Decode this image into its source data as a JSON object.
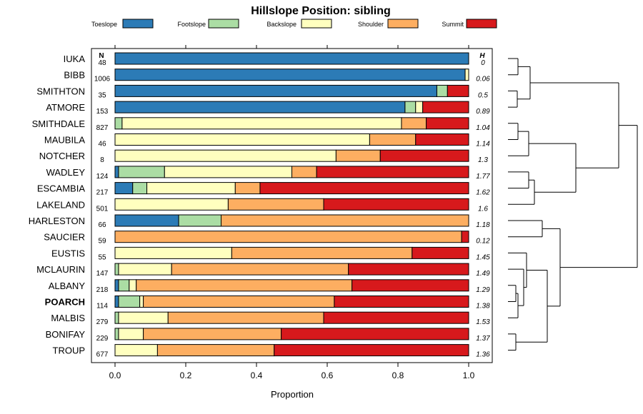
{
  "chart_data": {
    "type": "stacked-bar",
    "title": "Hillslope Position: sibling",
    "xlabel": "Proportion",
    "xlim": [
      0,
      1
    ],
    "xticks": [
      0.0,
      0.2,
      0.4,
      0.6,
      0.8,
      1.0
    ],
    "xtick_labels": [
      "0.0",
      "0.2",
      "0.4",
      "0.6",
      "0.8",
      "1.0"
    ],
    "n_header": "N",
    "h_header": "H",
    "categories": [
      "Toeslope",
      "Footslope",
      "Backslope",
      "Shoulder",
      "Summit"
    ],
    "colors": [
      "#2c7bb6",
      "#abdda4",
      "#ffffbf",
      "#fdae61",
      "#d7191c"
    ],
    "highlight": "POARCH",
    "rows": [
      {
        "name": "IUKA",
        "n": "48",
        "h": "0",
        "values": [
          1.0,
          0.0,
          0.0,
          0.0,
          0.0
        ]
      },
      {
        "name": "BIBB",
        "n": "1006",
        "h": "0.06",
        "values": [
          0.99,
          0.0,
          0.01,
          0.0,
          0.0
        ]
      },
      {
        "name": "SMITHTON",
        "n": "35",
        "h": "0.5",
        "values": [
          0.91,
          0.03,
          0.0,
          0.0,
          0.06
        ]
      },
      {
        "name": "ATMORE",
        "n": "153",
        "h": "0.89",
        "values": [
          0.82,
          0.03,
          0.02,
          0.0,
          0.13
        ]
      },
      {
        "name": "SMITHDALE",
        "n": "827",
        "h": "1.04",
        "values": [
          0.0,
          0.02,
          0.79,
          0.07,
          0.12
        ]
      },
      {
        "name": "MAUBILA",
        "n": "46",
        "h": "1.14",
        "values": [
          0.0,
          0.0,
          0.72,
          0.13,
          0.15
        ]
      },
      {
        "name": "NOTCHER",
        "n": "8",
        "h": "1.3",
        "values": [
          0.0,
          0.0,
          0.625,
          0.125,
          0.25
        ]
      },
      {
        "name": "WADLEY",
        "n": "124",
        "h": "1.77",
        "values": [
          0.01,
          0.13,
          0.36,
          0.07,
          0.43
        ]
      },
      {
        "name": "ESCAMBIA",
        "n": "217",
        "h": "1.62",
        "values": [
          0.05,
          0.04,
          0.25,
          0.07,
          0.59
        ]
      },
      {
        "name": "LAKELAND",
        "n": "501",
        "h": "1.6",
        "values": [
          0.0,
          0.0,
          0.32,
          0.27,
          0.41
        ]
      },
      {
        "name": "HARLESTON",
        "n": "66",
        "h": "1.18",
        "values": [
          0.18,
          0.12,
          0.0,
          0.7,
          0.0
        ]
      },
      {
        "name": "SAUCIER",
        "n": "59",
        "h": "0.12",
        "values": [
          0.0,
          0.0,
          0.0,
          0.98,
          0.02
        ]
      },
      {
        "name": "EUSTIS",
        "n": "55",
        "h": "1.45",
        "values": [
          0.0,
          0.0,
          0.33,
          0.51,
          0.16
        ]
      },
      {
        "name": "MCLAURIN",
        "n": "147",
        "h": "1.49",
        "values": [
          0.0,
          0.01,
          0.15,
          0.5,
          0.34
        ]
      },
      {
        "name": "ALBANY",
        "n": "218",
        "h": "1.29",
        "values": [
          0.01,
          0.03,
          0.02,
          0.61,
          0.33
        ]
      },
      {
        "name": "POARCH",
        "n": "114",
        "h": "1.38",
        "values": [
          0.01,
          0.06,
          0.01,
          0.54,
          0.38
        ]
      },
      {
        "name": "MALBIS",
        "n": "279",
        "h": "1.53",
        "values": [
          0.0,
          0.01,
          0.14,
          0.44,
          0.41
        ]
      },
      {
        "name": "BONIFAY",
        "n": "229",
        "h": "1.37",
        "values": [
          0.0,
          0.01,
          0.07,
          0.39,
          0.53
        ]
      },
      {
        "name": "TROUP",
        "n": "677",
        "h": "1.36",
        "values": [
          0.0,
          0.0,
          0.12,
          0.33,
          0.55
        ]
      }
    ],
    "dendrogram": {
      "type": "hierarchical-clustering",
      "leaf_order": [
        "IUKA",
        "BIBB",
        "SMITHTON",
        "ATMORE",
        "SMITHDALE",
        "MAUBILA",
        "NOTCHER",
        "WADLEY",
        "ESCAMBIA",
        "LAKELAND",
        "HARLESTON",
        "SAUCIER",
        "EUSTIS",
        "MCLAURIN",
        "ALBANY",
        "POARCH",
        "MALBIS",
        "BONIFAY",
        "TROUP"
      ]
    }
  }
}
